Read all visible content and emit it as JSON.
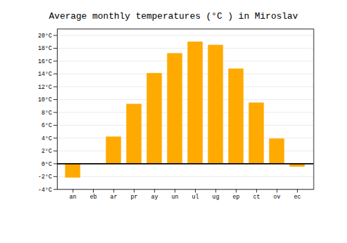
{
  "chart_data": {
    "type": "bar",
    "title": "Average monthly temperatures (°C ) in Miroslav",
    "categories": [
      "an",
      "eb",
      "ar",
      "pr",
      "ay",
      "un",
      "ul",
      "ug",
      "ep",
      "ct",
      "ov",
      "ec"
    ],
    "values": [
      -2.2,
      0.0,
      4.2,
      9.3,
      14.1,
      17.2,
      19.0,
      18.5,
      14.8,
      9.5,
      3.9,
      -0.5
    ],
    "color": "#FFAA00",
    "ylim": [
      -4,
      21
    ],
    "yticks": [
      {
        "value": -4,
        "label": "-4°C"
      },
      {
        "value": -2,
        "label": "-2°C"
      },
      {
        "value": 0,
        "label": "0°C"
      },
      {
        "value": 2,
        "label": "2°C"
      },
      {
        "value": 4,
        "label": "4°C"
      },
      {
        "value": 6,
        "label": "6°C"
      },
      {
        "value": 8,
        "label": "8°C"
      },
      {
        "value": 10,
        "label": "10°C"
      },
      {
        "value": 12,
        "label": "12°C"
      },
      {
        "value": 14,
        "label": "14°C"
      },
      {
        "value": 16,
        "label": "16°C"
      },
      {
        "value": 18,
        "label": "18°C"
      },
      {
        "value": 20,
        "label": "20°C"
      }
    ],
    "grid": true
  }
}
